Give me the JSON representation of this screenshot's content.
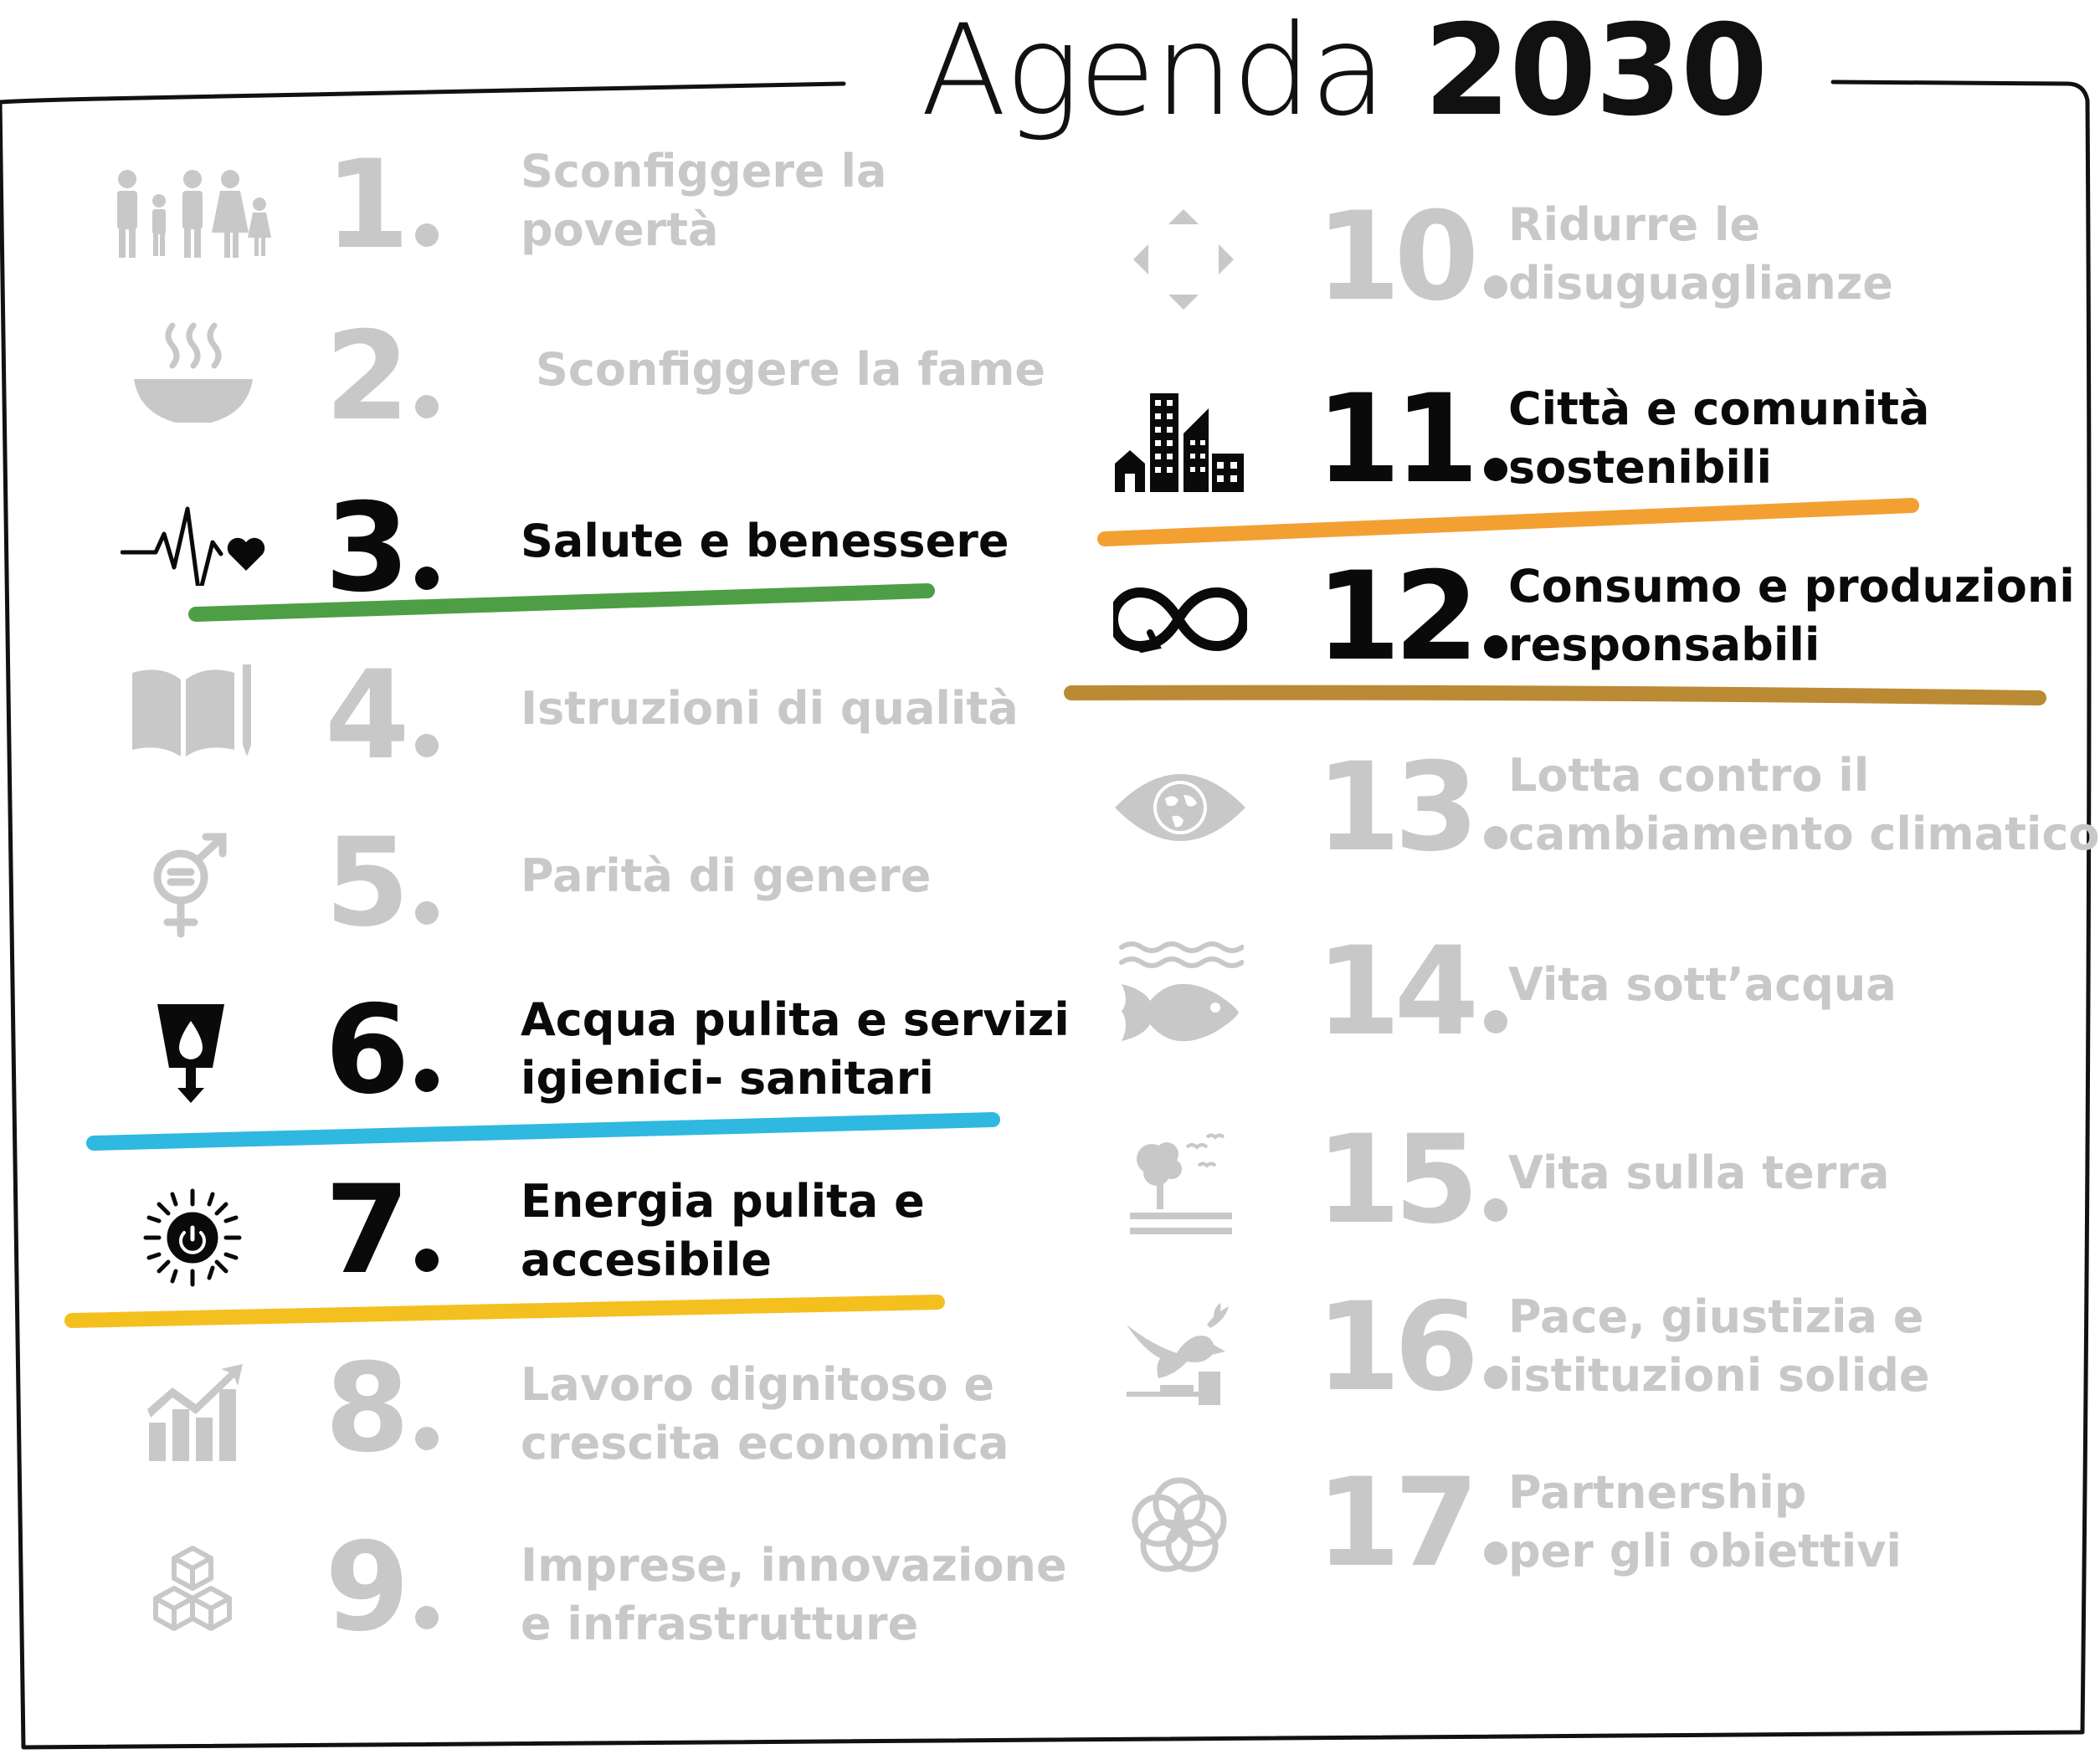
{
  "title": {
    "light": "Agenda",
    "bold": "2030"
  },
  "colors": {
    "inactive": "#c8c8c8",
    "active": "#0a0a0a",
    "goal3": "#4e9e46",
    "goal6": "#2fb8e0",
    "goal7": "#f4c020",
    "goal11": "#f3a033",
    "goal12": "#bb8a34"
  },
  "goals": [
    {
      "number": "1",
      "lines": [
        "Sconfiggere la",
        "povertà"
      ],
      "icon": "family-icon",
      "active": false
    },
    {
      "number": "2",
      "lines": [
        "Sconfiggere la fame"
      ],
      "icon": "bowl-icon",
      "active": false
    },
    {
      "number": "3",
      "lines": [
        "Salute e benessere"
      ],
      "icon": "heartbeat-icon",
      "active": true
    },
    {
      "number": "4",
      "lines": [
        "Istruzioni di qualità"
      ],
      "icon": "book-pencil-icon",
      "active": false
    },
    {
      "number": "5",
      "lines": [
        "Parità di genere"
      ],
      "icon": "gender-equality-icon",
      "active": false
    },
    {
      "number": "6",
      "lines": [
        "Acqua pulita e servizi",
        "igienici- sanitari"
      ],
      "icon": "water-glass-icon",
      "active": true
    },
    {
      "number": "7",
      "lines": [
        "Energia pulita e",
        "accesibile"
      ],
      "icon": "sun-power-icon",
      "active": true
    },
    {
      "number": "8",
      "lines": [
        "Lavoro dignitoso e",
        "crescita economica"
      ],
      "icon": "growth-chart-icon",
      "active": false
    },
    {
      "number": "9",
      "lines": [
        "Imprese, innovazione",
        "e infrastrutture"
      ],
      "icon": "cubes-icon",
      "active": false
    },
    {
      "number": "10",
      "lines": [
        "Ridurre le",
        "disuguaglianze"
      ],
      "icon": "arrows-icon",
      "active": false
    },
    {
      "number": "11",
      "lines": [
        "Città e comunità",
        "sostenibili"
      ],
      "icon": "city-icon",
      "active": true
    },
    {
      "number": "12",
      "lines": [
        "Consumo e produzioni",
        "responsabili"
      ],
      "icon": "infinity-icon",
      "active": true
    },
    {
      "number": "13",
      "lines": [
        "Lotta contro il",
        "cambiamento climatico"
      ],
      "icon": "eye-globe-icon",
      "active": false
    },
    {
      "number": "14",
      "lines": [
        "Vita sott’acqua"
      ],
      "icon": "fish-waves-icon",
      "active": false
    },
    {
      "number": "15",
      "lines": [
        "Vita sulla terra"
      ],
      "icon": "tree-birds-icon",
      "active": false
    },
    {
      "number": "16",
      "lines": [
        "Pace, giustizia e",
        "istituzioni solide"
      ],
      "icon": "dove-gavel-icon",
      "active": false
    },
    {
      "number": "17",
      "lines": [
        "Partnership",
        "per gli obiettivi"
      ],
      "icon": "rings-icon",
      "active": false
    }
  ]
}
